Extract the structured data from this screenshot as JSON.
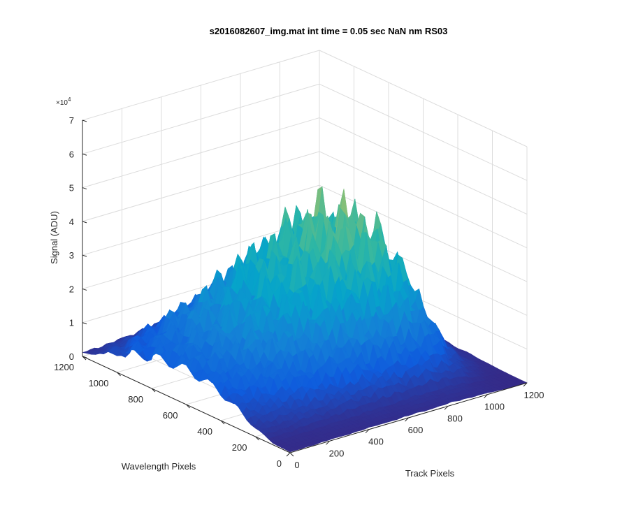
{
  "chart_data": {
    "type": "surface",
    "title": "s2016082607_img.mat int time = 0.05 sec  NaN nm RS03",
    "xlabel": "Track Pixels",
    "ylabel": "Wavelength Pixels",
    "zlabel": "Signal (ADU)",
    "z_exponent_label": "×10",
    "z_exponent_power": "4",
    "xlim": [
      0,
      1200
    ],
    "ylim": [
      0,
      1200
    ],
    "zlim": [
      0,
      70000
    ],
    "x_ticks": [
      "0",
      "200",
      "400",
      "600",
      "800",
      "1000",
      "1200"
    ],
    "y_ticks": [
      "0",
      "200",
      "400",
      "600",
      "800",
      "1000",
      "1200"
    ],
    "z_ticks": [
      "0",
      "1",
      "2",
      "3",
      "4",
      "5",
      "6",
      "7"
    ],
    "grid": true,
    "colormap": "parula",
    "colormap_stops": [
      "#352a87",
      "#0f5cdd",
      "#1481d6",
      "#06a4ca",
      "#2eb7a4",
      "#87bf77",
      "#d1bb59",
      "#fec832",
      "#f9fb0e"
    ],
    "track_profile_x": [
      0,
      60,
      120,
      180,
      240,
      300,
      360,
      420,
      480,
      540,
      600,
      660,
      720,
      780,
      840,
      900,
      960,
      1020,
      1080,
      1140,
      1200
    ],
    "track_profile_rel": [
      0.18,
      0.22,
      0.25,
      0.3,
      0.34,
      0.37,
      0.4,
      0.45,
      0.5,
      0.52,
      0.55,
      0.6,
      0.62,
      0.65,
      0.66,
      0.62,
      0.5,
      0.3,
      0.15,
      0.06,
      0.02
    ],
    "wavelength_profile_y": [
      0,
      100,
      200,
      300,
      400,
      500,
      600,
      700,
      800,
      900,
      1000,
      1100,
      1200
    ],
    "wavelength_profile_rel": [
      0.02,
      0.05,
      0.25,
      0.55,
      0.8,
      0.95,
      1.0,
      0.98,
      0.92,
      0.78,
      0.55,
      0.3,
      0.1
    ]
  }
}
